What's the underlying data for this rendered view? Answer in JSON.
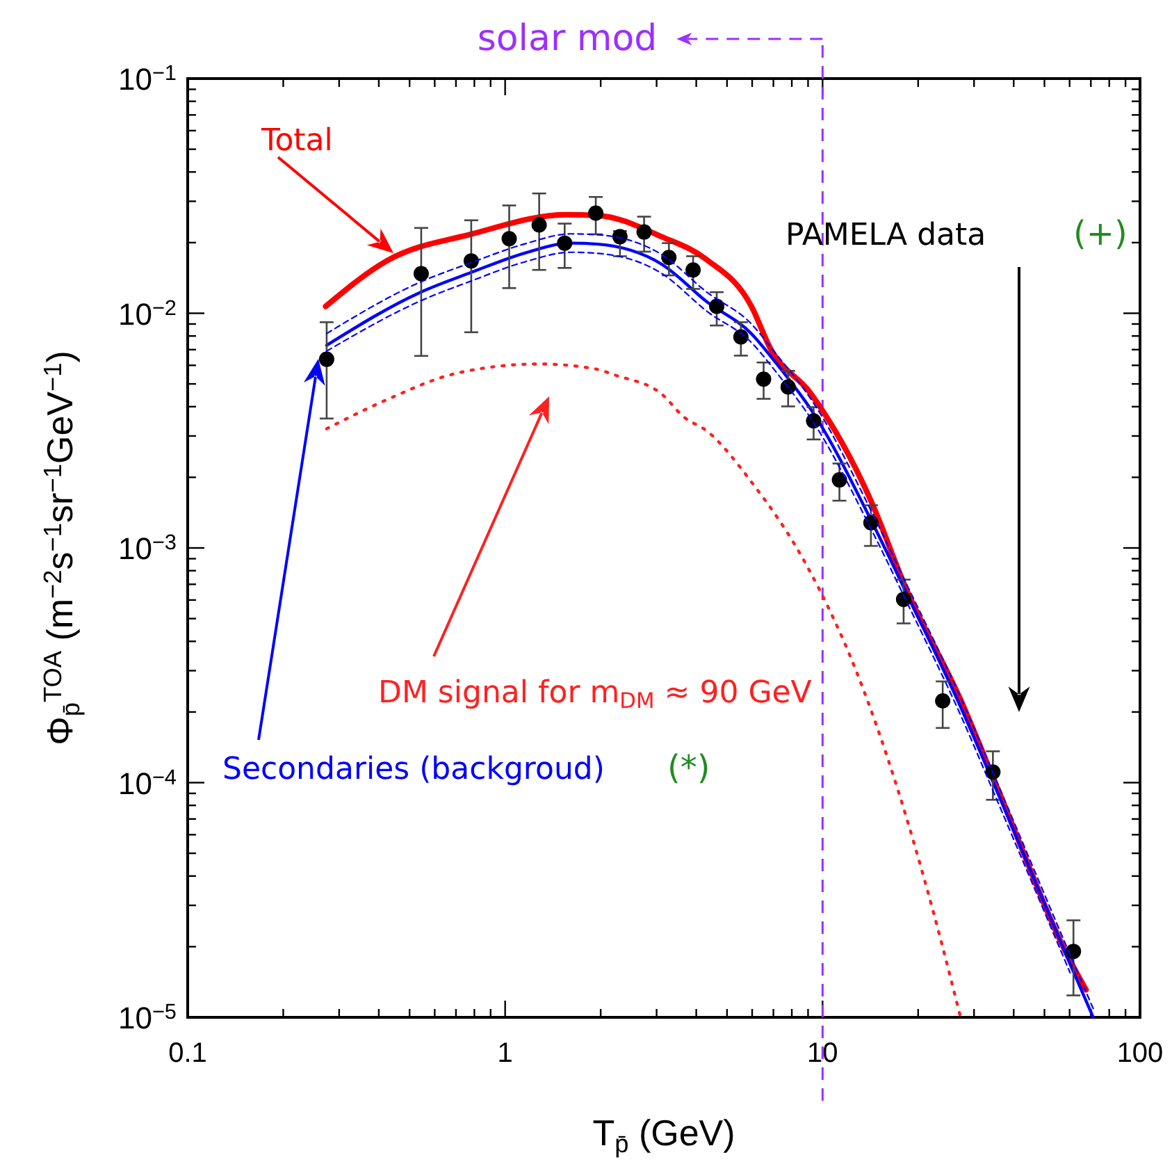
{
  "chart_data": {
    "type": "line",
    "xlabel": "T$_{p̄}$ (GeV)",
    "ylabel": "Φ$_{p̄}$$^{TOA}$ (m$^{−2}$s$^{−1}$sr$^{−1}$GeV$^{−1}$)",
    "log": "xy",
    "xlim": [
      0.1,
      100
    ],
    "ylim": [
      1e-05,
      0.1
    ],
    "xticks": [
      0.1,
      {
        "value": 0.2,
        "label": null
      },
      {
        "value": 0.3,
        "label": null
      },
      {
        "value": 0.4,
        "label": null
      },
      {
        "value": 0.5,
        "label": null
      },
      {
        "value": 0.6,
        "label": null
      },
      {
        "value": 0.7,
        "label": null
      },
      {
        "value": 0.8,
        "label": null
      },
      {
        "value": 0.9,
        "label": null
      },
      1,
      {
        "value": 2,
        "label": null
      },
      {
        "value": 3,
        "label": null
      },
      {
        "value": 4,
        "label": null
      },
      {
        "value": 5,
        "label": null
      },
      {
        "value": 6,
        "label": null
      },
      {
        "value": 7,
        "label": null
      },
      {
        "value": 8,
        "label": null
      },
      {
        "value": 9,
        "label": null
      },
      10,
      {
        "value": 20,
        "label": null
      },
      {
        "value": 30,
        "label": null
      },
      {
        "value": 40,
        "label": null
      },
      {
        "value": 50,
        "label": null
      },
      {
        "value": 60,
        "label": null
      },
      {
        "value": 70,
        "label": null
      },
      {
        "value": 80,
        "label": null
      },
      {
        "value": 90,
        "label": null
      },
      100
    ],
    "yticks": [
      {
        "value": 1e-05,
        "label": "10$^{−5}$"
      },
      {
        "value": 2e-05,
        "label": null
      },
      {
        "value": 3e-05,
        "label": null
      },
      {
        "value": 4e-05,
        "label": null
      },
      {
        "value": 5e-05,
        "label": null
      },
      {
        "value": 6e-05,
        "label": null
      },
      {
        "value": 7e-05,
        "label": null
      },
      {
        "value": 8e-05,
        "label": null
      },
      {
        "value": 9e-05,
        "label": null
      },
      {
        "value": 0.0001,
        "label": "10$^{−4}$"
      },
      {
        "value": 0.0002,
        "label": null
      },
      {
        "value": 0.0003,
        "label": null
      },
      {
        "value": 0.0004,
        "label": null
      },
      {
        "value": 0.0005,
        "label": null
      },
      {
        "value": 0.0006,
        "label": null
      },
      {
        "value": 0.0007,
        "label": null
      },
      {
        "value": 0.0008,
        "label": null
      },
      {
        "value": 0.0009,
        "label": null
      },
      {
        "value": 0.001,
        "label": "10$^{−3}$"
      },
      {
        "value": 0.002,
        "label": null
      },
      {
        "value": 0.003,
        "label": null
      },
      {
        "value": 0.004,
        "label": null
      },
      {
        "value": 0.005,
        "label": null
      },
      {
        "value": 0.006,
        "label": null
      },
      {
        "value": 0.007,
        "label": null
      },
      {
        "value": 0.008,
        "label": null
      },
      {
        "value": 0.009,
        "label": null
      },
      {
        "value": 0.01,
        "label": "10$^{−2}$"
      },
      {
        "value": 0.02,
        "label": null
      },
      {
        "value": 0.03,
        "label": null
      },
      {
        "value": 0.04,
        "label": null
      },
      {
        "value": 0.05,
        "label": null
      },
      {
        "value": 0.06,
        "label": null
      },
      {
        "value": 0.07,
        "label": null
      },
      {
        "value": 0.08,
        "label": null
      },
      {
        "value": 0.09,
        "label": null
      },
      {
        "value": 0.1,
        "label": "10$^{−1}$"
      }
    ],
    "grid": false,
    "ref_lines": [
      {
        "axis": "x",
        "value": 10,
        "label": "solar mod",
        "color": "#9b30ff",
        "line_style": "dashed"
      }
    ],
    "annotations": [
      "(+)",
      "(*)"
    ],
    "series": [
      {
        "name": "Total",
        "color": "#ff0000",
        "line_style": "solid",
        "x": [
          0.272,
          0.43,
          0.779,
          1.56,
          1.96,
          3.11,
          4.32,
          5.97,
          6.83,
          9.18,
          14.2,
          18.3,
          27.2,
          35.6,
          60.0,
          67.6
        ],
        "values": [
          0.0107,
          0.0169,
          0.0217,
          0.0263,
          0.0261,
          0.0212,
          0.0169,
          0.0107,
          0.00713,
          0.00455,
          0.00159,
          0.000673,
          0.000226,
          9.44e-05,
          1.76e-05,
          1.31e-05
        ]
      },
      {
        "name": "Secondaries (backgroud)",
        "color": "#0000ff",
        "line_style": "solid",
        "x": [
          0.274,
          0.542,
          0.779,
          1.16,
          1.61,
          1.96,
          3.11,
          4.32,
          5.97,
          7.08,
          9.53,
          14.15,
          18.4,
          27.4,
          35.6,
          60.2,
          71.2
        ],
        "values": [
          0.0073,
          0.0123,
          0.0149,
          0.0181,
          0.0199,
          0.0197,
          0.0162,
          0.0112,
          0.00818,
          0.00622,
          0.00361,
          0.00133,
          0.00064,
          0.000206,
          9.06e-05,
          1.69e-05,
          1e-05
        ]
      },
      {
        "name": "DM signal for m$_{DM}$ ≈ 90 GeV",
        "color": "#ff2020",
        "line_style": "dotted",
        "x": [
          0.274,
          0.43,
          0.706,
          1.28,
          1.9,
          2.24,
          3.11,
          3.66,
          4.32,
          5.97,
          8.92,
          12.8,
          17.2,
          22.4,
          27.2
        ],
        "values": [
          0.00322,
          0.00432,
          0.00556,
          0.00608,
          0.00581,
          0.00543,
          0.00453,
          0.00361,
          0.00315,
          0.00191,
          0.00084,
          0.000296,
          9.48e-05,
          2.77e-05,
          1e-05
        ]
      },
      {
        "name": "PAMELA data",
        "type": "scatter",
        "color": "#000000",
        "marker": "circle",
        "x": [
          0.274,
          0.544,
          0.782,
          1.03,
          1.28,
          1.54,
          1.93,
          2.3,
          2.74,
          3.28,
          3.91,
          4.64,
          5.53,
          6.52,
          7.79,
          9.37,
          11.3,
          14.2,
          18.0,
          23.9,
          34.4,
          61.7
        ],
        "values": [
          0.00637,
          0.01476,
          0.0167,
          0.0208,
          0.0238,
          0.0199,
          0.0267,
          0.0212,
          0.0222,
          0.0173,
          0.0153,
          0.0107,
          0.00793,
          0.00524,
          0.00485,
          0.00348,
          0.00195,
          0.00128,
          0.000604,
          0.000223,
          0.000111,
          1.91e-05
        ],
        "errors": [
          [
            0.00356,
            0.00916
          ],
          [
            0.00658,
            0.0231
          ],
          [
            0.0083,
            0.0249
          ],
          [
            0.0128,
            0.0288
          ],
          [
            0.0153,
            0.0324
          ],
          [
            0.0156,
            0.0241
          ],
          [
            0.0217,
            0.0313
          ],
          [
            0.0175,
            0.0224
          ],
          [
            0.0183,
            0.0258
          ],
          [
            0.0145,
            0.0199
          ],
          [
            0.0127,
            0.0175
          ],
          [
            0.00887,
            0.0123
          ],
          [
            0.0066,
            0.00916
          ],
          [
            0.00432,
            0.00617
          ],
          [
            0.00401,
            0.00568
          ],
          [
            0.0029,
            0.00398
          ],
          [
            0.00159,
            0.00229
          ],
          [
            0.00102,
            0.00152
          ],
          [
            0.000477,
            0.000733
          ],
          [
            0.000171,
            0.00027
          ],
          [
            8.45e-05,
            0.000136
          ],
          [
            1.24e-05,
            2.59e-05
          ]
        ]
      },
      {
        "color": "#0000ff",
        "line_style": "dashed",
        "x": [
          0.274,
          0.542,
          0.779,
          1.16,
          1.61,
          1.96,
          3.11,
          4.32,
          5.97,
          7.08,
          9.53,
          14.15,
          18.4,
          27.4,
          35.6,
          60.2,
          71.2
        ],
        "values": [
          0.0082,
          0.0136,
          0.0164,
          0.0198,
          0.0218,
          0.0216,
          0.0178,
          0.0123,
          0.009,
          0.0068,
          0.004,
          0.00146,
          0.0007,
          0.000226,
          9.9e-05,
          1.85e-05,
          1.09e-05
        ]
      },
      {
        "color": "#0000ff",
        "line_style": "dashed",
        "x": [
          0.274,
          0.542,
          0.779,
          1.16,
          1.61,
          1.96,
          3.11,
          4.32,
          5.97,
          7.08,
          9.53,
          14.15,
          18.4,
          27.4,
          35.6,
          60.2
        ],
        "values": [
          0.0069,
          0.0113,
          0.0137,
          0.0166,
          0.0182,
          0.018,
          0.0148,
          0.0102,
          0.0075,
          0.0057,
          0.0033,
          0.00122,
          0.00059,
          0.00019,
          8.3e-05,
          1.55e-05
        ]
      }
    ]
  }
}
